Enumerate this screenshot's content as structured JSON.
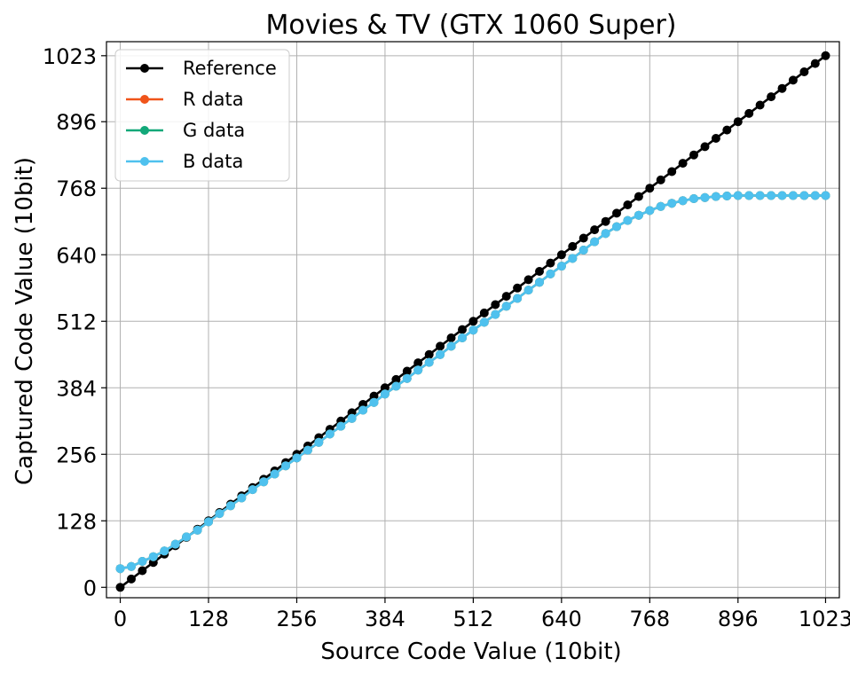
{
  "chart_data": {
    "type": "line",
    "title": "Movies & TV (GTX 1060 Super)",
    "xlabel": "Source Code Value (10bit)",
    "ylabel": "Captured Code Value (10bit)",
    "xlim": [
      -20,
      1043
    ],
    "ylim": [
      -20,
      1050
    ],
    "xticks": [
      0,
      128,
      256,
      384,
      512,
      640,
      768,
      896,
      1023
    ],
    "yticks": [
      0,
      128,
      256,
      384,
      512,
      640,
      768,
      896,
      1023
    ],
    "grid": true,
    "legend_position": "top-left",
    "x": [
      0,
      16,
      32,
      48,
      64,
      80,
      96,
      112,
      128,
      144,
      160,
      176,
      192,
      208,
      224,
      240,
      256,
      272,
      288,
      304,
      320,
      336,
      352,
      368,
      384,
      400,
      416,
      432,
      448,
      464,
      480,
      496,
      512,
      528,
      544,
      560,
      576,
      592,
      608,
      624,
      640,
      656,
      672,
      688,
      704,
      720,
      736,
      752,
      768,
      784,
      800,
      816,
      832,
      848,
      864,
      880,
      896,
      912,
      928,
      944,
      960,
      976,
      992,
      1008,
      1023
    ],
    "series": [
      {
        "name": "Reference",
        "color": "#000000",
        "values": [
          0,
          16,
          32,
          48,
          64,
          80,
          96,
          112,
          128,
          144,
          160,
          176,
          192,
          208,
          224,
          240,
          256,
          272,
          288,
          304,
          320,
          336,
          352,
          368,
          384,
          400,
          416,
          432,
          448,
          464,
          480,
          496,
          512,
          528,
          544,
          560,
          576,
          592,
          608,
          624,
          640,
          656,
          672,
          688,
          704,
          720,
          736,
          752,
          768,
          784,
          800,
          816,
          832,
          848,
          864,
          880,
          896,
          912,
          928,
          944,
          960,
          976,
          992,
          1008,
          1023
        ]
      },
      {
        "name": "R data",
        "color": "#f0541a",
        "values": [
          36,
          40,
          50,
          59,
          70,
          83,
          97,
          110,
          126,
          142,
          157,
          172,
          188,
          203,
          218,
          234,
          249,
          264,
          279,
          295,
          310,
          325,
          341,
          356,
          372,
          387,
          402,
          418,
          433,
          448,
          464,
          480,
          495,
          510,
          525,
          541,
          556,
          572,
          587,
          603,
          618,
          633,
          649,
          665,
          681,
          694,
          706,
          716,
          725,
          733,
          739,
          744,
          748,
          750,
          752,
          753,
          754,
          754,
          754,
          754,
          754,
          754,
          754,
          754,
          754
        ]
      },
      {
        "name": "G data",
        "color": "#12a879",
        "values": [
          36,
          40,
          50,
          59,
          70,
          83,
          97,
          110,
          126,
          142,
          157,
          172,
          188,
          203,
          218,
          234,
          249,
          264,
          279,
          295,
          310,
          325,
          341,
          356,
          372,
          387,
          402,
          418,
          433,
          448,
          464,
          480,
          495,
          510,
          525,
          541,
          556,
          572,
          587,
          603,
          618,
          633,
          649,
          665,
          681,
          694,
          706,
          716,
          725,
          733,
          739,
          744,
          748,
          750,
          752,
          753,
          754,
          754,
          754,
          754,
          754,
          754,
          754,
          754,
          754
        ]
      },
      {
        "name": "B data",
        "color": "#4fc1ee",
        "values": [
          36,
          40,
          50,
          59,
          70,
          83,
          97,
          110,
          126,
          142,
          157,
          172,
          188,
          203,
          218,
          234,
          249,
          264,
          279,
          295,
          310,
          325,
          341,
          356,
          372,
          387,
          402,
          418,
          433,
          448,
          464,
          480,
          495,
          510,
          525,
          541,
          556,
          572,
          587,
          603,
          618,
          633,
          649,
          665,
          681,
          694,
          706,
          716,
          725,
          733,
          739,
          744,
          748,
          750,
          752,
          753,
          754,
          754,
          754,
          754,
          754,
          754,
          754,
          754,
          754
        ]
      }
    ]
  }
}
